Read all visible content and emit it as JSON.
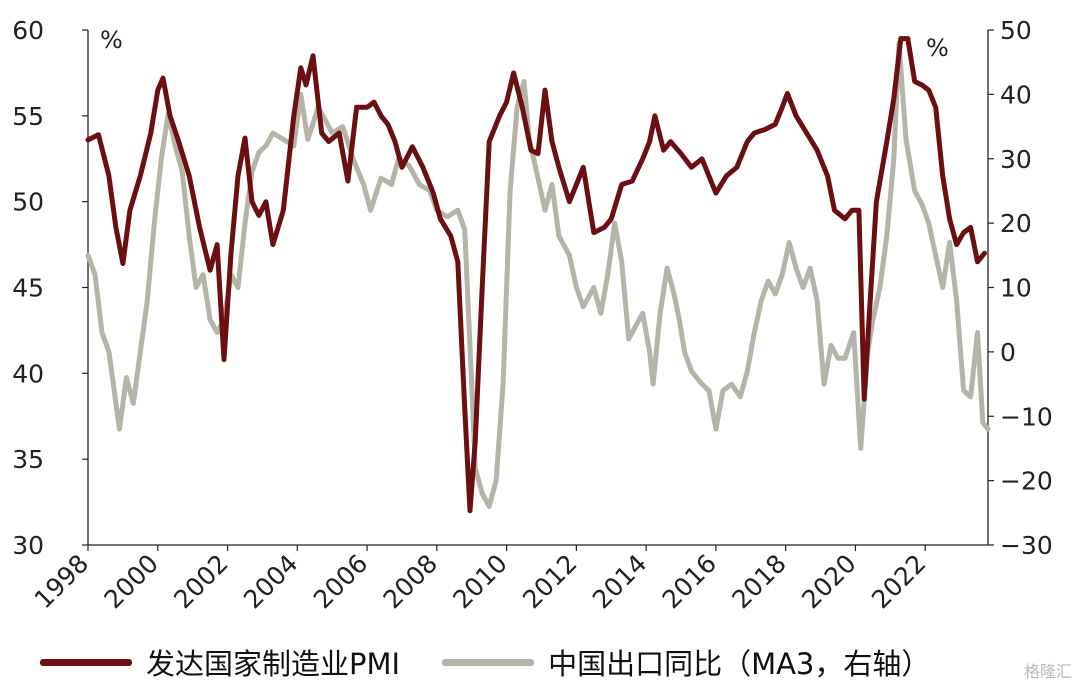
{
  "chart_data": {
    "type": "line",
    "x_labels": [
      "1998",
      "2000",
      "2002",
      "2004",
      "2006",
      "2008",
      "2010",
      "2012",
      "2014",
      "2016",
      "2018",
      "2020",
      "2022"
    ],
    "x_range": [
      1998,
      2023.8
    ],
    "left_axis": {
      "unit": "%",
      "ylim": [
        30,
        60
      ],
      "ticks": [
        30,
        35,
        40,
        45,
        50,
        55,
        60
      ]
    },
    "right_axis": {
      "unit": "%",
      "ylim": [
        -30,
        50
      ],
      "ticks": [
        -30,
        -20,
        -10,
        0,
        10,
        20,
        30,
        40,
        50
      ]
    },
    "grid": false,
    "legend_position": "bottom",
    "series": [
      {
        "name": "发达国家制造业PMI",
        "axis": "left",
        "color": "#6b0f12",
        "points": [
          [
            1998.0,
            53.6
          ],
          [
            1998.3,
            53.9
          ],
          [
            1998.6,
            51.5
          ],
          [
            1998.8,
            48.5
          ],
          [
            1999.0,
            46.4
          ],
          [
            1999.2,
            49.5
          ],
          [
            1999.5,
            51.5
          ],
          [
            1999.8,
            54.0
          ],
          [
            2000.0,
            56.5
          ],
          [
            2000.15,
            57.2
          ],
          [
            2000.35,
            55.0
          ],
          [
            2000.6,
            53.5
          ],
          [
            2000.9,
            51.5
          ],
          [
            2001.2,
            48.5
          ],
          [
            2001.5,
            46.0
          ],
          [
            2001.7,
            47.5
          ],
          [
            2001.9,
            40.8
          ],
          [
            2002.1,
            47.0
          ],
          [
            2002.3,
            51.5
          ],
          [
            2002.5,
            53.7
          ],
          [
            2002.7,
            50.0
          ],
          [
            2002.9,
            49.2
          ],
          [
            2003.1,
            50.0
          ],
          [
            2003.3,
            47.5
          ],
          [
            2003.6,
            49.5
          ],
          [
            2003.9,
            55.0
          ],
          [
            2004.1,
            57.8
          ],
          [
            2004.25,
            56.8
          ],
          [
            2004.45,
            58.5
          ],
          [
            2004.7,
            54.0
          ],
          [
            2004.9,
            53.5
          ],
          [
            2005.2,
            54.0
          ],
          [
            2005.45,
            51.2
          ],
          [
            2005.7,
            55.5
          ],
          [
            2006.0,
            55.5
          ],
          [
            2006.2,
            55.8
          ],
          [
            2006.4,
            55.0
          ],
          [
            2006.6,
            54.5
          ],
          [
            2006.8,
            53.5
          ],
          [
            2007.0,
            52.0
          ],
          [
            2007.3,
            53.2
          ],
          [
            2007.6,
            52.0
          ],
          [
            2007.9,
            50.5
          ],
          [
            2008.1,
            49.0
          ],
          [
            2008.4,
            48.0
          ],
          [
            2008.6,
            46.5
          ],
          [
            2008.8,
            38.0
          ],
          [
            2008.95,
            32.0
          ],
          [
            2009.1,
            36.0
          ],
          [
            2009.3,
            45.0
          ],
          [
            2009.5,
            53.5
          ],
          [
            2009.8,
            55.0
          ],
          [
            2010.0,
            55.8
          ],
          [
            2010.2,
            57.5
          ],
          [
            2010.45,
            55.5
          ],
          [
            2010.7,
            53.0
          ],
          [
            2010.9,
            52.8
          ],
          [
            2011.1,
            56.5
          ],
          [
            2011.3,
            53.5
          ],
          [
            2011.5,
            52.0
          ],
          [
            2011.8,
            50.0
          ],
          [
            2012.0,
            51.0
          ],
          [
            2012.2,
            52.0
          ],
          [
            2012.5,
            48.2
          ],
          [
            2012.8,
            48.5
          ],
          [
            2013.0,
            49.0
          ],
          [
            2013.3,
            51.0
          ],
          [
            2013.6,
            51.2
          ],
          [
            2013.9,
            52.5
          ],
          [
            2014.1,
            53.5
          ],
          [
            2014.25,
            55.0
          ],
          [
            2014.5,
            53.0
          ],
          [
            2014.7,
            53.5
          ],
          [
            2015.0,
            52.8
          ],
          [
            2015.3,
            52.0
          ],
          [
            2015.6,
            52.5
          ],
          [
            2015.8,
            51.5
          ],
          [
            2016.0,
            50.5
          ],
          [
            2016.3,
            51.5
          ],
          [
            2016.6,
            52.0
          ],
          [
            2016.9,
            53.5
          ],
          [
            2017.1,
            54.0
          ],
          [
            2017.4,
            54.2
          ],
          [
            2017.7,
            54.5
          ],
          [
            2017.9,
            55.5
          ],
          [
            2018.05,
            56.3
          ],
          [
            2018.3,
            55.0
          ],
          [
            2018.6,
            54.0
          ],
          [
            2018.9,
            53.0
          ],
          [
            2019.2,
            51.5
          ],
          [
            2019.4,
            49.5
          ],
          [
            2019.7,
            49.0
          ],
          [
            2019.9,
            49.5
          ],
          [
            2020.1,
            49.5
          ],
          [
            2020.25,
            38.5
          ],
          [
            2020.4,
            43.5
          ],
          [
            2020.6,
            50.0
          ],
          [
            2020.9,
            53.5
          ],
          [
            2021.1,
            56.0
          ],
          [
            2021.3,
            59.5
          ],
          [
            2021.5,
            59.5
          ],
          [
            2021.7,
            57.0
          ],
          [
            2021.9,
            56.8
          ],
          [
            2022.1,
            56.5
          ],
          [
            2022.3,
            55.5
          ],
          [
            2022.5,
            51.5
          ],
          [
            2022.7,
            49.0
          ],
          [
            2022.9,
            47.5
          ],
          [
            2023.1,
            48.2
          ],
          [
            2023.3,
            48.5
          ],
          [
            2023.5,
            46.5
          ],
          [
            2023.7,
            47.0
          ]
        ]
      },
      {
        "name": "中国出口同比（MA3，右轴）",
        "axis": "right",
        "color": "#b4b4a8",
        "points": [
          [
            1998.0,
            15.0
          ],
          [
            1998.2,
            12.0
          ],
          [
            1998.4,
            3.0
          ],
          [
            1998.6,
            0.0
          ],
          [
            1998.75,
            -6.0
          ],
          [
            1998.9,
            -12.0
          ],
          [
            1999.1,
            -4.0
          ],
          [
            1999.3,
            -8.0
          ],
          [
            1999.5,
            0.0
          ],
          [
            1999.7,
            8.0
          ],
          [
            1999.9,
            20.0
          ],
          [
            2000.1,
            30.0
          ],
          [
            2000.3,
            37.0
          ],
          [
            2000.5,
            32.0
          ],
          [
            2000.7,
            28.0
          ],
          [
            2000.9,
            18.0
          ],
          [
            2001.1,
            10.0
          ],
          [
            2001.3,
            12.0
          ],
          [
            2001.5,
            5.0
          ],
          [
            2001.7,
            3.0
          ],
          [
            2001.9,
            5.0
          ],
          [
            2002.1,
            12.0
          ],
          [
            2002.3,
            10.0
          ],
          [
            2002.5,
            20.0
          ],
          [
            2002.7,
            28.0
          ],
          [
            2002.9,
            31.0
          ],
          [
            2003.1,
            32.0
          ],
          [
            2003.3,
            34.0
          ],
          [
            2003.6,
            33.0
          ],
          [
            2003.9,
            32.0
          ],
          [
            2004.1,
            40.0
          ],
          [
            2004.3,
            33.0
          ],
          [
            2004.6,
            38.0
          ],
          [
            2004.8,
            36.0
          ],
          [
            2005.0,
            34.0
          ],
          [
            2005.3,
            35.0
          ],
          [
            2005.6,
            30.0
          ],
          [
            2005.9,
            26.0
          ],
          [
            2006.1,
            22.0
          ],
          [
            2006.4,
            27.0
          ],
          [
            2006.7,
            26.0
          ],
          [
            2006.9,
            30.0
          ],
          [
            2007.2,
            29.0
          ],
          [
            2007.5,
            26.0
          ],
          [
            2007.8,
            25.0
          ],
          [
            2008.0,
            22.0
          ],
          [
            2008.3,
            21.0
          ],
          [
            2008.6,
            22.0
          ],
          [
            2008.8,
            19.0
          ],
          [
            2009.0,
            -5.0
          ],
          [
            2009.1,
            -18.0
          ],
          [
            2009.3,
            -22.0
          ],
          [
            2009.5,
            -24.0
          ],
          [
            2009.7,
            -20.0
          ],
          [
            2009.9,
            -5.0
          ],
          [
            2010.1,
            25.0
          ],
          [
            2010.3,
            38.0
          ],
          [
            2010.5,
            42.0
          ],
          [
            2010.65,
            33.0
          ],
          [
            2010.9,
            27.0
          ],
          [
            2011.1,
            22.0
          ],
          [
            2011.3,
            26.0
          ],
          [
            2011.5,
            18.0
          ],
          [
            2011.8,
            15.0
          ],
          [
            2012.0,
            10.0
          ],
          [
            2012.2,
            7.0
          ],
          [
            2012.5,
            10.0
          ],
          [
            2012.7,
            6.0
          ],
          [
            2012.9,
            12.0
          ],
          [
            2013.1,
            20.0
          ],
          [
            2013.3,
            14.0
          ],
          [
            2013.5,
            2.0
          ],
          [
            2013.7,
            4.0
          ],
          [
            2013.9,
            6.0
          ],
          [
            2014.1,
            0.0
          ],
          [
            2014.2,
            -5.0
          ],
          [
            2014.4,
            6.0
          ],
          [
            2014.6,
            13.0
          ],
          [
            2014.8,
            9.0
          ],
          [
            2014.95,
            5.0
          ],
          [
            2015.1,
            0.0
          ],
          [
            2015.3,
            -3.0
          ],
          [
            2015.6,
            -5.0
          ],
          [
            2015.8,
            -6.0
          ],
          [
            2016.0,
            -12.0
          ],
          [
            2016.2,
            -6.0
          ],
          [
            2016.45,
            -5.0
          ],
          [
            2016.7,
            -7.0
          ],
          [
            2016.9,
            -3.0
          ],
          [
            2017.1,
            3.0
          ],
          [
            2017.3,
            8.0
          ],
          [
            2017.5,
            11.0
          ],
          [
            2017.7,
            9.0
          ],
          [
            2017.9,
            12.0
          ],
          [
            2018.1,
            17.0
          ],
          [
            2018.3,
            13.0
          ],
          [
            2018.5,
            10.0
          ],
          [
            2018.7,
            13.0
          ],
          [
            2018.9,
            8.0
          ],
          [
            2019.1,
            -5.0
          ],
          [
            2019.3,
            1.0
          ],
          [
            2019.5,
            -1.0
          ],
          [
            2019.7,
            -1.0
          ],
          [
            2019.95,
            3.0
          ],
          [
            2020.15,
            -15.0
          ],
          [
            2020.35,
            0.0
          ],
          [
            2020.5,
            5.0
          ],
          [
            2020.7,
            10.0
          ],
          [
            2020.9,
            18.0
          ],
          [
            2021.1,
            30.0
          ],
          [
            2021.25,
            48.0
          ],
          [
            2021.45,
            33.0
          ],
          [
            2021.7,
            25.0
          ],
          [
            2021.9,
            23.0
          ],
          [
            2022.1,
            20.0
          ],
          [
            2022.3,
            15.0
          ],
          [
            2022.5,
            10.0
          ],
          [
            2022.7,
            17.0
          ],
          [
            2022.9,
            8.0
          ],
          [
            2023.1,
            -6.0
          ],
          [
            2023.3,
            -7.0
          ],
          [
            2023.5,
            3.0
          ],
          [
            2023.65,
            -11.0
          ],
          [
            2023.8,
            -12.0
          ]
        ]
      }
    ]
  },
  "watermark": "格隆汇"
}
